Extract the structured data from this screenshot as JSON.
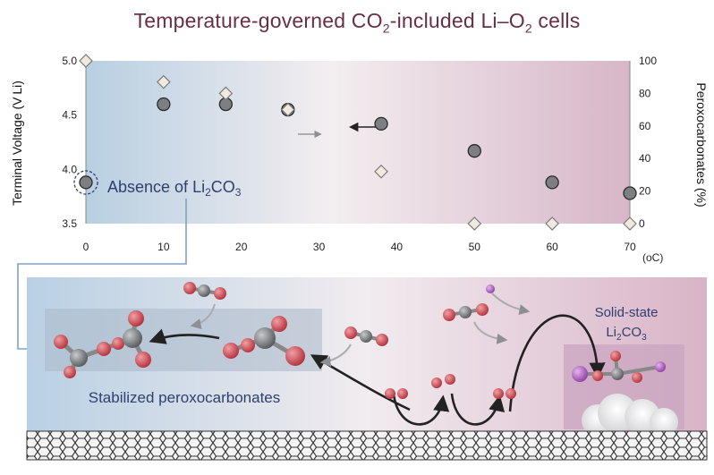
{
  "figure": {
    "title": {
      "prefix": "Temperature-governed CO",
      "sub1": "2",
      "mid": "-included Li–O",
      "sub2": "2",
      "suffix": " cells"
    }
  },
  "chart_data": {
    "type": "scatter",
    "x_ticks": [
      "0",
      "10",
      "20",
      "30",
      "40",
      "50",
      "60",
      "70"
    ],
    "x_unit": "(oC)",
    "y_left_label": "Terminal Voltage (V Li)",
    "y_left_ticks": [
      "3.5",
      "4.0",
      "4.5",
      "5.0"
    ],
    "y_right_label": "Peroxocarbonates (%)",
    "y_right_ticks": [
      "0",
      "20",
      "40",
      "60",
      "80",
      "100"
    ],
    "xlim": [
      0,
      70
    ],
    "ylim_left": [
      3.5,
      5.0
    ],
    "ylim_right": [
      0,
      100
    ],
    "series": [
      {
        "axis": "left",
        "marker": "circle",
        "x": [
          0,
          10,
          18,
          26,
          38,
          50,
          60,
          70
        ],
        "y": [
          3.88,
          4.6,
          4.6,
          4.55,
          4.42,
          4.17,
          3.88,
          3.78
        ]
      },
      {
        "axis": "right",
        "marker": "diamond",
        "x": [
          0,
          10,
          18,
          26,
          38,
          50,
          60,
          70
        ],
        "y": [
          100,
          87,
          80,
          70,
          32,
          0,
          0,
          0
        ]
      }
    ],
    "annotation": {
      "prefix": "Absence of Li",
      "sub1": "2",
      "mid": "CO",
      "sub2": "3"
    }
  },
  "lower": {
    "stabilized_label": "Stabilized peroxocarbonates",
    "solid_state_line1": "Solid-state",
    "solid_state_prefix": "Li",
    "solid_state_sub1": "2",
    "solid_state_mid": "CO",
    "solid_state_sub2": "3"
  },
  "colors": {
    "title": "#6a2d4a",
    "text": "#2f3f6e",
    "oxygen": "#c9434b",
    "carbon": "#6f7275",
    "lithium": "#b05fc0"
  }
}
